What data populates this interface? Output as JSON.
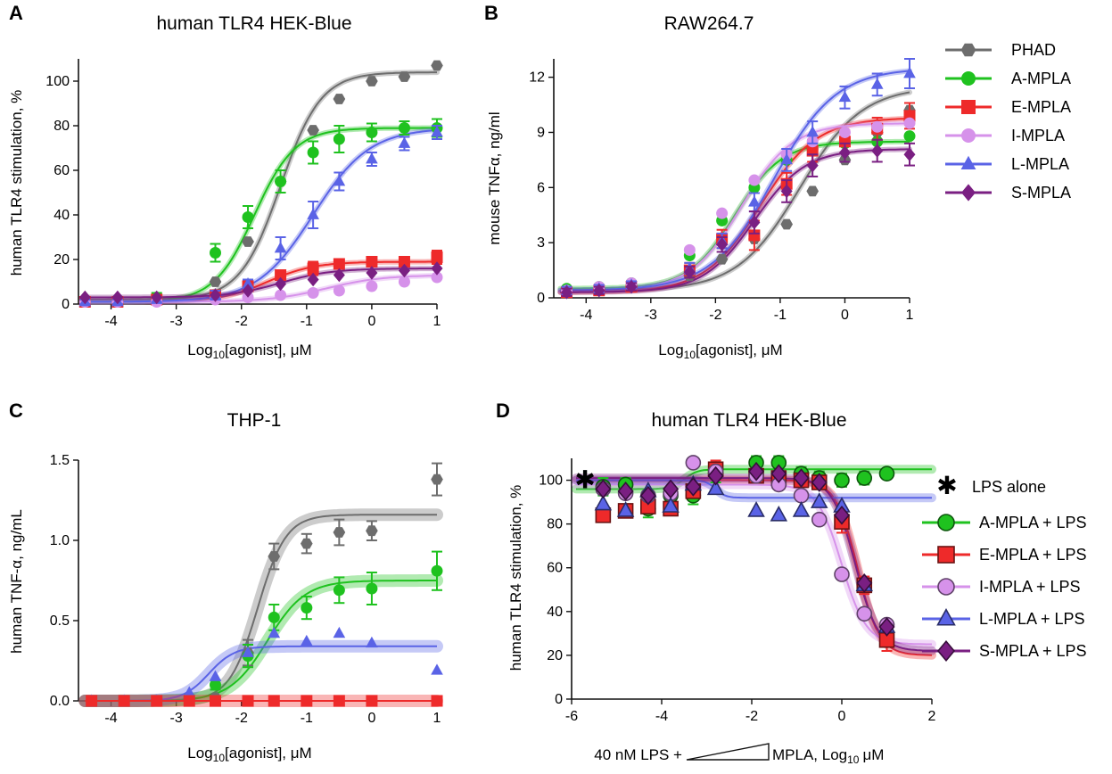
{
  "figure": {
    "series_styles": {
      "PHAD": {
        "color": "#6d6d6d",
        "marker": "hexagon"
      },
      "A-MPLA": {
        "color": "#1fc21f",
        "marker": "circle"
      },
      "E-MPLA": {
        "color": "#ee2a2a",
        "marker": "square"
      },
      "I-MPLA": {
        "color": "#d692ea",
        "marker": "circle"
      },
      "L-MPLA": {
        "color": "#5a63e6",
        "marker": "triangle"
      },
      "S-MPLA": {
        "color": "#7a1f82",
        "marker": "diamond"
      }
    },
    "legend_top": {
      "items": [
        "PHAD",
        "A-MPLA",
        "E-MPLA",
        "I-MPLA",
        "L-MPLA",
        "S-MPLA"
      ]
    },
    "legend_d": {
      "lps_alone": "LPS alone",
      "items": [
        {
          "series": "A-MPLA",
          "label": "A-MPLA + LPS"
        },
        {
          "series": "E-MPLA",
          "label": "E-MPLA + LPS"
        },
        {
          "series": "I-MPLA",
          "label": "I-MPLA + LPS"
        },
        {
          "series": "L-MPLA",
          "label": "L-MPLA + LPS"
        },
        {
          "series": "S-MPLA",
          "label": "S-MPLA + LPS"
        }
      ]
    }
  },
  "chart_data": [
    {
      "panel": "A",
      "type": "line",
      "title": "human TLR4 HEK-Blue",
      "xlabel_base": "Log",
      "xlabel_sub": "10",
      "xlabel_rest": "[agonist], μM",
      "ylabel": "human TLR4 stimulation, %",
      "xlim": [
        -4.5,
        1
      ],
      "ylim": [
        0,
        110
      ],
      "xticks": [
        -4,
        -3,
        -2,
        -1,
        0,
        1
      ],
      "xtick_labels": [
        "-4",
        "-3",
        "-2",
        "-1",
        "0",
        "1"
      ],
      "yticks": [
        0,
        20,
        40,
        60,
        80,
        100
      ],
      "ytick_labels": [
        "0",
        "20",
        "40",
        "60",
        "80",
        "100"
      ],
      "x": [
        -4.4,
        -3.9,
        -3.3,
        -2.4,
        -1.9,
        -1.4,
        -0.9,
        -0.5,
        0.0,
        0.5,
        1.0
      ],
      "series": [
        {
          "name": "PHAD",
          "values": [
            2,
            2,
            3,
            10,
            28,
            55,
            78,
            92,
            100,
            102,
            107
          ],
          "fit": {
            "bottom": 2,
            "top": 104,
            "logec50": -1.4,
            "hill": 1.4
          }
        },
        {
          "name": "A-MPLA",
          "values": [
            1,
            2,
            3,
            23,
            39,
            55,
            68,
            74,
            77,
            79,
            79
          ],
          "err": [
            2,
            1,
            2,
            4,
            5,
            5,
            5,
            6,
            4,
            3,
            4
          ],
          "fit": {
            "bottom": 1,
            "top": 79,
            "logec50": -1.8,
            "hill": 1.4
          }
        },
        {
          "name": "E-MPLA",
          "values": [
            1,
            1,
            2,
            4,
            8,
            13,
            16,
            18,
            19,
            19,
            21
          ],
          "err": [
            1,
            1,
            1,
            2,
            2,
            2,
            3,
            2,
            2,
            2,
            3
          ],
          "fit": {
            "bottom": 1,
            "top": 19,
            "logec50": -1.6,
            "hill": 1.2
          }
        },
        {
          "name": "I-MPLA",
          "values": [
            1,
            1,
            1,
            2,
            3,
            4,
            5,
            6,
            8,
            10,
            12
          ],
          "fit": {
            "bottom": 1,
            "top": 13,
            "logec50": -0.7,
            "hill": 1.0
          }
        },
        {
          "name": "L-MPLA",
          "values": [
            1,
            1,
            2,
            4,
            9,
            25,
            40,
            55,
            65,
            72,
            77
          ],
          "err": [
            1,
            1,
            1,
            2,
            2,
            5,
            6,
            4,
            3,
            3,
            3
          ],
          "fit": {
            "bottom": 1,
            "top": 79,
            "logec50": -0.9,
            "hill": 1.0
          }
        },
        {
          "name": "S-MPLA",
          "values": [
            3,
            3,
            3,
            4,
            6,
            9,
            11,
            13,
            14,
            15,
            16
          ],
          "fit": {
            "bottom": 3,
            "top": 16,
            "logec50": -1.4,
            "hill": 1.1
          }
        }
      ]
    },
    {
      "panel": "B",
      "type": "line",
      "title": "RAW264.7",
      "xlabel_base": "Log",
      "xlabel_sub": "10",
      "xlabel_rest": "[agonist], μM",
      "ylabel": "mouse TNFα, ng/ml",
      "xlim": [
        -4.5,
        1
      ],
      "ylim": [
        0,
        13
      ],
      "xticks": [
        -4,
        -3,
        -2,
        -1,
        0,
        1
      ],
      "xtick_labels": [
        "-4",
        "-3",
        "-2",
        "-1",
        "0",
        "1"
      ],
      "yticks": [
        0,
        3,
        6,
        9,
        12
      ],
      "ytick_labels": [
        "0",
        "3",
        "6",
        "9",
        "12"
      ],
      "x": [
        -4.3,
        -3.8,
        -3.3,
        -2.4,
        -1.9,
        -1.4,
        -0.9,
        -0.5,
        0.0,
        0.5,
        1.0
      ],
      "series": [
        {
          "name": "PHAD",
          "values": [
            0.4,
            0.5,
            0.6,
            1.2,
            2.1,
            3.2,
            4.0,
            5.8,
            7.5,
            9.0,
            10.2
          ],
          "fit": {
            "bottom": 0.4,
            "top": 11.5,
            "logec50": -0.7,
            "hill": 0.9
          }
        },
        {
          "name": "A-MPLA",
          "values": [
            0.5,
            0.6,
            0.8,
            2.3,
            4.2,
            6.0,
            7.5,
            8.1,
            8.4,
            8.5,
            8.8
          ],
          "fit": {
            "bottom": 0.5,
            "top": 8.5,
            "logec50": -1.7,
            "hill": 1.2
          }
        },
        {
          "name": "E-MPLA",
          "values": [
            0.3,
            0.4,
            0.6,
            1.5,
            3.2,
            3.4,
            6.2,
            8.0,
            8.5,
            9.2,
            9.9
          ],
          "err": [
            0.2,
            0.2,
            0.2,
            0.4,
            0.5,
            0.8,
            0.6,
            0.6,
            0.6,
            0.6,
            0.7
          ],
          "fit": {
            "bottom": 0.3,
            "top": 9.8,
            "logec50": -1.3,
            "hill": 1.0
          }
        },
        {
          "name": "I-MPLA",
          "values": [
            0.4,
            0.6,
            0.8,
            2.6,
            4.6,
            6.4,
            7.8,
            8.5,
            9.0,
            9.3,
            9.5
          ],
          "fit": {
            "bottom": 0.4,
            "top": 9.5,
            "logec50": -1.6,
            "hill": 1.1
          }
        },
        {
          "name": "L-MPLA",
          "values": [
            0.4,
            0.5,
            0.7,
            1.6,
            3.1,
            5.2,
            7.5,
            9.0,
            10.9,
            11.6,
            12.2
          ],
          "err": [
            0.2,
            0.2,
            0.2,
            0.3,
            0.4,
            0.5,
            0.6,
            0.6,
            0.6,
            0.6,
            0.8
          ],
          "fit": {
            "bottom": 0.4,
            "top": 12.5,
            "logec50": -1.1,
            "hill": 0.9
          }
        },
        {
          "name": "S-MPLA",
          "values": [
            0.3,
            0.4,
            0.6,
            1.4,
            2.9,
            4.1,
            5.8,
            7.2,
            7.9,
            8.0,
            7.8
          ],
          "err": [
            0.2,
            0.2,
            0.2,
            0.3,
            0.4,
            0.6,
            0.6,
            0.6,
            0.5,
            0.6,
            0.6
          ],
          "fit": {
            "bottom": 0.3,
            "top": 8.1,
            "logec50": -1.4,
            "hill": 1.1
          }
        }
      ]
    },
    {
      "panel": "C",
      "type": "line",
      "title": "THP-1",
      "xlabel_base": "Log",
      "xlabel_sub": "10",
      "xlabel_rest": "[agonist], μM",
      "ylabel": "human TNF-α, ng/mL",
      "xlim": [
        -4.5,
        1
      ],
      "ylim": [
        0,
        1.5
      ],
      "xticks": [
        -4,
        -3,
        -2,
        -1,
        0,
        1
      ],
      "xtick_labels": [
        "-4",
        "-3",
        "-2",
        "-1",
        "0",
        "1"
      ],
      "yticks": [
        0,
        0.5,
        1.0,
        1.5
      ],
      "ytick_labels": [
        "0.0",
        "0.5",
        "1.0",
        "1.5"
      ],
      "x": [
        -4.3,
        -3.8,
        -3.3,
        -2.8,
        -2.4,
        -1.9,
        -1.5,
        -1.0,
        -0.5,
        0.0,
        1.0
      ],
      "series": [
        {
          "name": "PHAD",
          "values": [
            0.0,
            0.0,
            0.0,
            0.01,
            0.02,
            0.3,
            0.9,
            0.98,
            1.05,
            1.06,
            1.38
          ],
          "err": [
            0,
            0,
            0,
            0,
            0,
            0.08,
            0.08,
            0.06,
            0.08,
            0.06,
            0.1
          ],
          "fit": {
            "bottom": 0.0,
            "top": 1.16,
            "logec50": -1.75,
            "hill": 2.0
          }
        },
        {
          "name": "A-MPLA",
          "values": [
            0.0,
            0.0,
            0.0,
            0.02,
            0.1,
            0.28,
            0.52,
            0.58,
            0.69,
            0.7,
            0.81
          ],
          "err": [
            0,
            0,
            0,
            0,
            0.03,
            0.07,
            0.08,
            0.07,
            0.08,
            0.1,
            0.12
          ],
          "fit": {
            "bottom": 0.0,
            "top": 0.75,
            "logec50": -1.6,
            "hill": 1.5
          }
        },
        {
          "name": "L-MPLA",
          "values": [
            0.0,
            0.0,
            0.0,
            0.05,
            0.15,
            0.3,
            0.42,
            0.37,
            0.42,
            0.36,
            0.19
          ],
          "fit": {
            "bottom": 0.0,
            "top": 0.34,
            "logec50": -2.5,
            "hill": 2.2
          }
        },
        {
          "name": "E-MPLA",
          "values": [
            0,
            0,
            0,
            0,
            0,
            0,
            0,
            0,
            0,
            0,
            0
          ],
          "fit": {
            "bottom": 0.0,
            "top": 0.0,
            "logec50": 0,
            "hill": 1
          }
        }
      ]
    },
    {
      "panel": "D",
      "type": "line",
      "title": "human TLR4 HEK-Blue",
      "xlabel_pre": "40 nM LPS +",
      "xlabel_post": "MPLA, Log",
      "xlabel_sub": "10",
      "xlabel_unit": "μM",
      "ylabel": "human TLR4 stimulation, %",
      "xlim": [
        -6,
        2
      ],
      "ylim": [
        0,
        110
      ],
      "xticks": [
        -6,
        -4,
        -2,
        0,
        2
      ],
      "xtick_labels": [
        "-6",
        "-4",
        "-2",
        "0",
        "2"
      ],
      "yticks": [
        0,
        20,
        40,
        60,
        80,
        100
      ],
      "ytick_labels": [
        "0",
        "20",
        "40",
        "60",
        "80",
        "100"
      ],
      "lps_alone": {
        "x": -5.7,
        "y": 100
      },
      "x": [
        -5.3,
        -4.8,
        -4.3,
        -3.8,
        -3.3,
        -2.8,
        -1.9,
        -1.4,
        -0.9,
        -0.5,
        0.0,
        0.5,
        1.0
      ],
      "series": [
        {
          "name": "A-MPLA",
          "values": [
            97,
            98,
            87,
            93,
            93,
            103,
            108,
            108,
            103,
            101,
            100,
            101,
            103
          ],
          "err": [
            4,
            3,
            4,
            4,
            4,
            4,
            3,
            3,
            3,
            3,
            3,
            3,
            2
          ],
          "fit": {
            "bottom": 96,
            "top": 105,
            "logec50": -3.5,
            "hill": 3.0
          }
        },
        {
          "name": "E-MPLA",
          "values": [
            84,
            86,
            88,
            87,
            95,
            105,
            102,
            101,
            100,
            99,
            81,
            52,
            27
          ],
          "err": [
            3,
            3,
            3,
            3,
            3,
            4,
            3,
            3,
            3,
            3,
            5,
            4,
            5
          ],
          "fit": {
            "bottom": 20,
            "top": 100,
            "logec50": 0.35,
            "hill": -1.8
          }
        },
        {
          "name": "I-MPLA",
          "values": [
            96,
            94,
            93,
            94,
            108,
            104,
            102,
            98,
            93,
            82,
            57,
            39,
            34
          ],
          "fit": {
            "bottom": 25,
            "top": 98,
            "logec50": 0.0,
            "hill": -1.6
          }
        },
        {
          "name": "L-MPLA",
          "values": [
            89,
            86,
            95,
            88,
            98,
            96,
            86,
            84,
            86,
            90,
            88,
            52,
            33
          ],
          "fit": {
            "bottom": 92,
            "top": 100,
            "logec50": -2.8,
            "hill": -4.0
          }
        },
        {
          "name": "S-MPLA",
          "values": [
            96,
            95,
            93,
            96,
            97,
            102,
            104,
            103,
            101,
            99,
            84,
            53,
            33
          ],
          "fit": {
            "bottom": 22,
            "top": 101,
            "logec50": 0.3,
            "hill": -1.7
          }
        }
      ]
    }
  ]
}
